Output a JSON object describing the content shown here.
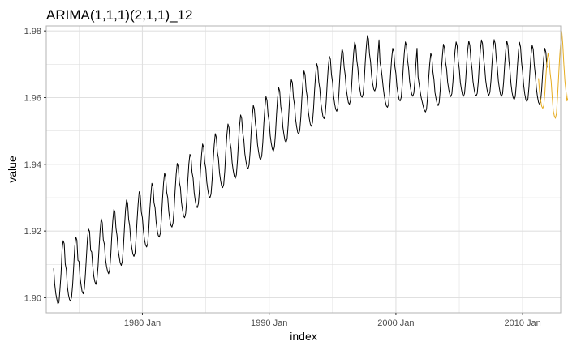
{
  "chart_data": {
    "type": "line",
    "title": "ARIMA(1,1,1)(2,1,1)_12",
    "xlabel": "index",
    "ylabel": "value",
    "x_ticks": [
      "1980 Jan",
      "1990 Jan",
      "2000 Jan",
      "2010 Jan"
    ],
    "y_ticks": [
      "1.90",
      "1.92",
      "1.94",
      "1.96",
      "1.98"
    ],
    "xlim": [
      "1972-06",
      "2013-01"
    ],
    "ylim": [
      1.8955,
      1.9815
    ],
    "grid": true,
    "colors": {
      "history": "#000000",
      "forecast": "#e6ac1f",
      "grid": "#e0e0e0",
      "border": "#b3b3b3"
    },
    "series": [
      {
        "start": "1973-01",
        "values": [
          1.9088,
          1.9041,
          1.9013,
          1.8996,
          1.8982,
          1.8986,
          1.9026,
          1.9072,
          1.9145,
          1.9171,
          1.9162,
          1.9101,
          1.9084,
          1.9033,
          1.9009,
          1.8995,
          1.899,
          1.9002,
          1.904,
          1.9095,
          1.9153,
          1.9182,
          1.9173,
          1.9112,
          1.9109,
          1.9061,
          1.9037,
          1.9017,
          1.9012,
          1.9026,
          1.9068,
          1.9122,
          1.9177,
          1.9206,
          1.9199,
          1.9142,
          1.9137,
          1.9095,
          1.9064,
          1.9048,
          1.904,
          1.9056,
          1.9093,
          1.915,
          1.9202,
          1.9237,
          1.9225,
          1.9174,
          1.9161,
          1.9118,
          1.9095,
          1.908,
          1.9072,
          1.9084,
          1.9124,
          1.9184,
          1.9233,
          1.9265,
          1.9256,
          1.9208,
          1.9186,
          1.9145,
          1.9123,
          1.9104,
          1.9097,
          1.911,
          1.915,
          1.9209,
          1.9262,
          1.9293,
          1.9284,
          1.9235,
          1.9215,
          1.9172,
          1.9149,
          1.9131,
          1.9124,
          1.9134,
          1.9178,
          1.9234,
          1.9283,
          1.9318,
          1.9306,
          1.9257,
          1.924,
          1.92,
          1.9174,
          1.9158,
          1.9152,
          1.9162,
          1.9202,
          1.9263,
          1.9307,
          1.9343,
          1.9333,
          1.9285,
          1.927,
          1.9228,
          1.9203,
          1.9187,
          1.9182,
          1.9193,
          1.9236,
          1.9293,
          1.9342,
          1.9374,
          1.9363,
          1.9316,
          1.93,
          1.9258,
          1.9234,
          1.9217,
          1.9212,
          1.9224,
          1.9264,
          1.9322,
          1.9371,
          1.9403,
          1.9393,
          1.9346,
          1.933,
          1.9286,
          1.9263,
          1.9245,
          1.924,
          1.9253,
          1.9292,
          1.9351,
          1.9401,
          1.943,
          1.9422,
          1.9376,
          1.9359,
          1.9316,
          1.9292,
          1.9275,
          1.927,
          1.9282,
          1.9321,
          1.9382,
          1.9428,
          1.9461,
          1.9451,
          1.9406,
          1.9389,
          1.9346,
          1.9323,
          1.9305,
          1.93,
          1.9311,
          1.9352,
          1.9411,
          1.9458,
          1.9492,
          1.9481,
          1.9436,
          1.9418,
          1.9375,
          1.9352,
          1.9335,
          1.933,
          1.934,
          1.938,
          1.944,
          1.9488,
          1.9521,
          1.951,
          1.9465,
          1.9446,
          1.9404,
          1.9381,
          1.9364,
          1.9358,
          1.9369,
          1.9411,
          1.9469,
          1.9516,
          1.9548,
          1.9538,
          1.9494,
          1.9475,
          1.9432,
          1.941,
          1.9392,
          1.9387,
          1.9398,
          1.9438,
          1.9498,
          1.9543,
          1.9577,
          1.9566,
          1.9522,
          1.9501,
          1.9459,
          1.9437,
          1.9419,
          1.9415,
          1.9425,
          1.9466,
          1.9524,
          1.957,
          1.9603,
          1.9592,
          1.9548,
          1.9529,
          1.9486,
          1.9463,
          1.9446,
          1.944,
          1.9452,
          1.9492,
          1.955,
          1.9598,
          1.963,
          1.962,
          1.9574,
          1.9554,
          1.9511,
          1.9489,
          1.9471,
          1.9466,
          1.9476,
          1.9518,
          1.9577,
          1.9622,
          1.9654,
          1.9645,
          1.96,
          1.9579,
          1.9536,
          1.9513,
          1.9496,
          1.9491,
          1.9502,
          1.9542,
          1.96,
          1.9646,
          1.968,
          1.9669,
          1.9624,
          1.9603,
          1.956,
          1.9537,
          1.952,
          1.9514,
          1.9525,
          1.9566,
          1.9622,
          1.9668,
          1.9702,
          1.9691,
          1.9647,
          1.9626,
          1.9584,
          1.9561,
          1.9542,
          1.9537,
          1.9548,
          1.9588,
          1.9645,
          1.9692,
          1.9724,
          1.9715,
          1.9669,
          1.9647,
          1.9605,
          1.9582,
          1.9565,
          1.9559,
          1.957,
          1.9609,
          1.9668,
          1.9713,
          1.9746,
          1.9735,
          1.9691,
          1.9668,
          1.9626,
          1.9604,
          1.9585,
          1.958,
          1.9591,
          1.963,
          1.9687,
          1.9734,
          1.9766,
          1.9756,
          1.9712,
          1.9688,
          1.9646,
          1.9623,
          1.9605,
          1.9601,
          1.9611,
          1.9651,
          1.9708,
          1.9753,
          1.9786,
          1.9776,
          1.9731,
          1.9708,
          1.9665,
          1.9642,
          1.9625,
          1.962,
          1.963,
          1.967,
          1.9727,
          1.9773,
          1.9705,
          1.9688,
          1.9661,
          1.963,
          1.9605,
          1.9588,
          1.9575,
          1.9571,
          1.958,
          1.9618,
          1.9672,
          1.9718,
          1.9748,
          1.9738,
          1.9693,
          1.9672,
          1.9632,
          1.9611,
          1.9595,
          1.959,
          1.96,
          1.9638,
          1.9692,
          1.9736,
          1.9767,
          1.9756,
          1.9713,
          1.9688,
          1.9648,
          1.9626,
          1.961,
          1.9604,
          1.9614,
          1.965,
          1.9705,
          1.9748,
          1.9662,
          1.964,
          1.9618,
          1.9599,
          1.9586,
          1.9572,
          1.9562,
          1.9557,
          1.9566,
          1.9603,
          1.9657,
          1.9701,
          1.9733,
          1.9723,
          1.9678,
          1.9655,
          1.9615,
          1.9597,
          1.9582,
          1.9576,
          1.9586,
          1.9624,
          1.968,
          1.9724,
          1.976,
          1.9749,
          1.9706,
          1.9686,
          1.9646,
          1.9625,
          1.961,
          1.9603,
          1.9612,
          1.9648,
          1.97,
          1.9741,
          1.9767,
          1.9755,
          1.971,
          1.9686,
          1.9646,
          1.9625,
          1.9609,
          1.9604,
          1.9613,
          1.965,
          1.9703,
          1.9744,
          1.977,
          1.9757,
          1.9713,
          1.9688,
          1.9648,
          1.9626,
          1.961,
          1.9605,
          1.9613,
          1.9648,
          1.9702,
          1.9745,
          1.9773,
          1.9762,
          1.9718,
          1.9692,
          1.9652,
          1.9629,
          1.9613,
          1.9607,
          1.9616,
          1.9651,
          1.9703,
          1.9746,
          1.9774,
          1.9762,
          1.9717,
          1.969,
          1.965,
          1.9627,
          1.961,
          1.9604,
          1.9612,
          1.9648,
          1.97,
          1.9742,
          1.977,
          1.9757,
          1.971,
          1.968,
          1.964,
          1.9615,
          1.96,
          1.9594,
          1.9603,
          1.964,
          1.9692,
          1.9737,
          1.9766,
          1.9752,
          1.9705,
          1.9676,
          1.9636,
          1.9611,
          1.9594,
          1.9588,
          1.9596,
          1.9632,
          1.9686,
          1.973,
          1.9757,
          1.9745,
          1.9698,
          1.9668,
          1.9628,
          1.9603,
          1.9586,
          1.958,
          1.9588,
          1.9624,
          1.9676,
          1.972,
          1.9748,
          1.9736,
          1.969
        ]
      },
      {
        "start": "2011-04",
        "values": [
          1.9658,
          1.9618,
          1.9593,
          1.9574,
          1.9568,
          1.9576,
          1.9612,
          1.9664,
          1.9706,
          1.9732,
          1.972,
          1.9675,
          1.9648,
          1.96,
          1.956,
          1.9545,
          1.9538,
          1.9552,
          1.96,
          1.966,
          1.972,
          1.9765,
          1.98,
          1.976,
          1.97,
          1.965,
          1.962,
          1.959,
          1.96,
          1.964
        ]
      }
    ]
  }
}
